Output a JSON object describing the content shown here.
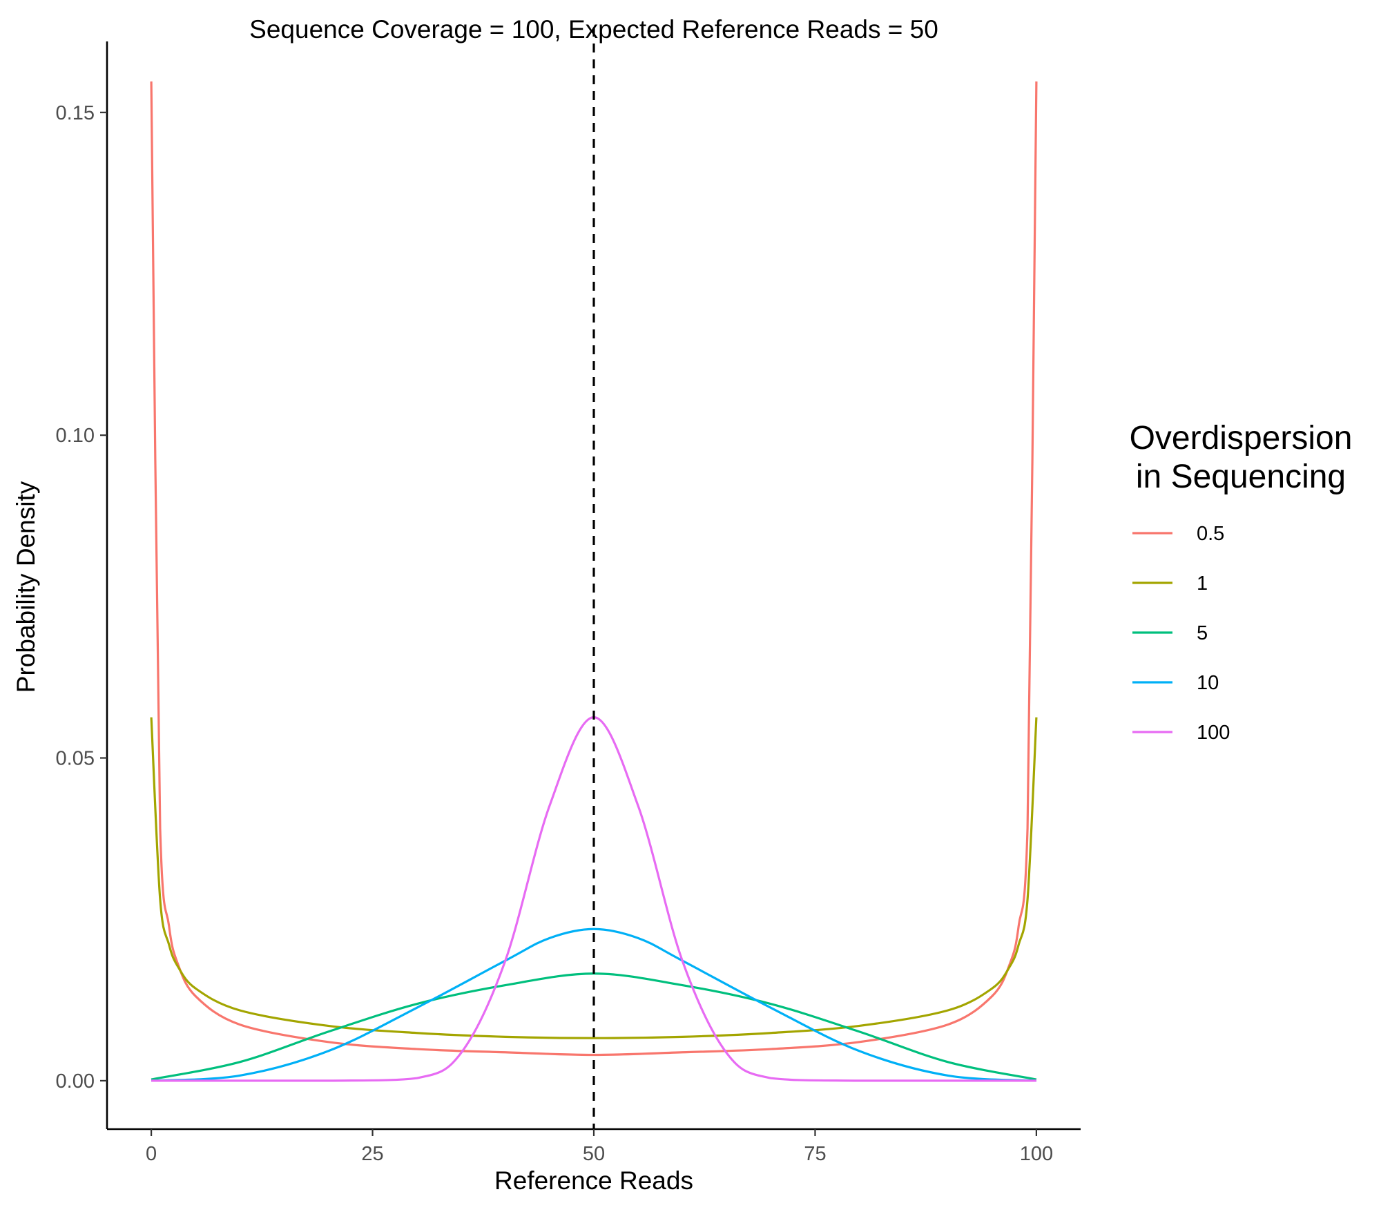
{
  "chart_data": {
    "type": "line",
    "title": "Sequence Coverage = 100, Expected Reference Reads = 50",
    "xlabel": "Reference Reads",
    "ylabel": "Probability Density",
    "xlim": [
      -5,
      105
    ],
    "ylim": [
      -0.0075,
      0.161
    ],
    "x_ticks": [
      0,
      25,
      50,
      75,
      100
    ],
    "y_ticks": [
      0.0,
      0.05,
      0.1,
      0.15
    ],
    "x_tick_labels": [
      "0",
      "25",
      "50",
      "75",
      "100"
    ],
    "y_tick_labels": [
      "0.00",
      "0.05",
      "0.10",
      "0.15"
    ],
    "grid": false,
    "legend_position": "right",
    "legend_title": [
      "Overdispersion",
      "in Sequencing"
    ],
    "reference_line": {
      "x": 50,
      "style": "dashed",
      "color": "#000000"
    },
    "coverage": 100,
    "expected_reads": 50,
    "series": [
      {
        "name": "0.5",
        "color": "#F8766D",
        "overdispersion": 0.5,
        "points": [
          [
            0,
            0.1548
          ],
          [
            1,
            0.0391
          ],
          [
            2,
            0.024
          ],
          [
            3,
            0.0181
          ],
          [
            5,
            0.0131
          ],
          [
            10,
            0.0087
          ],
          [
            20,
            0.006
          ],
          [
            30,
            0.0049
          ],
          [
            40,
            0.0044
          ],
          [
            50,
            0.004
          ],
          [
            60,
            0.0044
          ],
          [
            70,
            0.0049
          ],
          [
            80,
            0.006
          ],
          [
            90,
            0.0087
          ],
          [
            95,
            0.0131
          ],
          [
            97,
            0.0181
          ],
          [
            98,
            0.024
          ],
          [
            99,
            0.0391
          ],
          [
            100,
            0.1548
          ]
        ]
      },
      {
        "name": "1",
        "color": "#A3A500",
        "overdispersion": 1,
        "points": [
          [
            0,
            0.0563
          ],
          [
            1,
            0.0281
          ],
          [
            2,
            0.0211
          ],
          [
            3,
            0.0177
          ],
          [
            5,
            0.0143
          ],
          [
            10,
            0.0109
          ],
          [
            20,
            0.0085
          ],
          [
            30,
            0.0074
          ],
          [
            40,
            0.0068
          ],
          [
            50,
            0.0066
          ],
          [
            60,
            0.0068
          ],
          [
            70,
            0.0074
          ],
          [
            80,
            0.0085
          ],
          [
            90,
            0.0109
          ],
          [
            95,
            0.0143
          ],
          [
            97,
            0.0177
          ],
          [
            98,
            0.0211
          ],
          [
            99,
            0.0281
          ],
          [
            100,
            0.0563
          ]
        ]
      },
      {
        "name": "5",
        "color": "#00BF7D",
        "overdispersion": 5,
        "points": [
          [
            0,
            0.0002
          ],
          [
            10,
            0.0029
          ],
          [
            20,
            0.0076
          ],
          [
            30,
            0.0119
          ],
          [
            40,
            0.0148
          ],
          [
            50,
            0.0166
          ],
          [
            60,
            0.0148
          ],
          [
            70,
            0.0119
          ],
          [
            80,
            0.0076
          ],
          [
            90,
            0.0029
          ],
          [
            100,
            0.0002
          ]
        ]
      },
      {
        "name": "10",
        "color": "#00B0F6",
        "overdispersion": 10,
        "points": [
          [
            0,
            0.0
          ],
          [
            10,
            0.0008
          ],
          [
            20,
            0.0046
          ],
          [
            30,
            0.0113
          ],
          [
            40,
            0.0186
          ],
          [
            45,
            0.0221
          ],
          [
            50,
            0.0235
          ],
          [
            55,
            0.0221
          ],
          [
            60,
            0.0186
          ],
          [
            70,
            0.0113
          ],
          [
            80,
            0.0046
          ],
          [
            90,
            0.0008
          ],
          [
            100,
            0.0
          ]
        ]
      },
      {
        "name": "100",
        "color": "#E76BF3",
        "overdispersion": 100,
        "points": [
          [
            0,
            0.0
          ],
          [
            20,
            0.0
          ],
          [
            30,
            0.0004
          ],
          [
            35,
            0.0043
          ],
          [
            40,
            0.0186
          ],
          [
            45,
            0.0426
          ],
          [
            50,
            0.0563
          ],
          [
            55,
            0.0426
          ],
          [
            60,
            0.0186
          ],
          [
            65,
            0.0043
          ],
          [
            70,
            0.0004
          ],
          [
            80,
            0.0
          ],
          [
            100,
            0.0
          ]
        ]
      }
    ]
  }
}
